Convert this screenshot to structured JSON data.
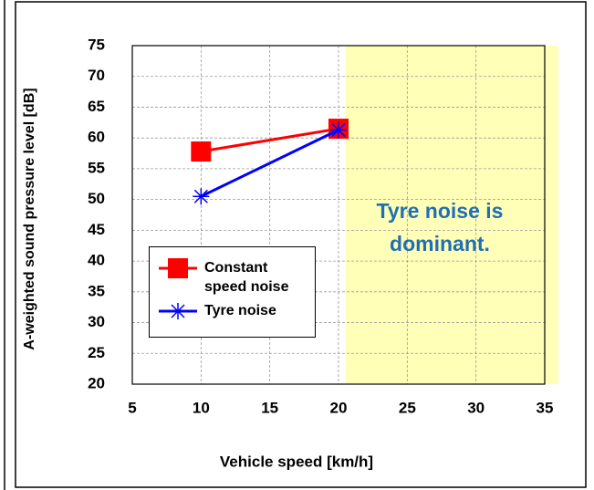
{
  "chart_data": {
    "type": "line",
    "xlabel": "Vehicle speed [km/h]",
    "ylabel": "A-weighted sound pressure level [dB]",
    "xlim": [
      5,
      35
    ],
    "xticks": [
      5,
      10,
      15,
      20,
      25,
      30,
      35
    ],
    "ylim": [
      20,
      75
    ],
    "yticks": [
      20,
      25,
      30,
      35,
      40,
      45,
      50,
      55,
      60,
      65,
      70,
      75
    ],
    "grid": true,
    "legend": "lower left",
    "highlight": {
      "x_from": 20.5,
      "color": "#ffffb8"
    },
    "annotation": {
      "lines": [
        "Tyre noise is",
        "dominant."
      ],
      "color": "#1f6fb4"
    },
    "series": [
      {
        "name": "Constant speed noise",
        "color": "#ff0000",
        "marker": "square",
        "x": [
          10,
          20
        ],
        "values": [
          57.8,
          61.5
        ]
      },
      {
        "name": "Tyre noise",
        "color": "#0000ff",
        "marker": "asterisk",
        "x": [
          10,
          20
        ],
        "values": [
          50.5,
          61.3
        ]
      }
    ]
  }
}
